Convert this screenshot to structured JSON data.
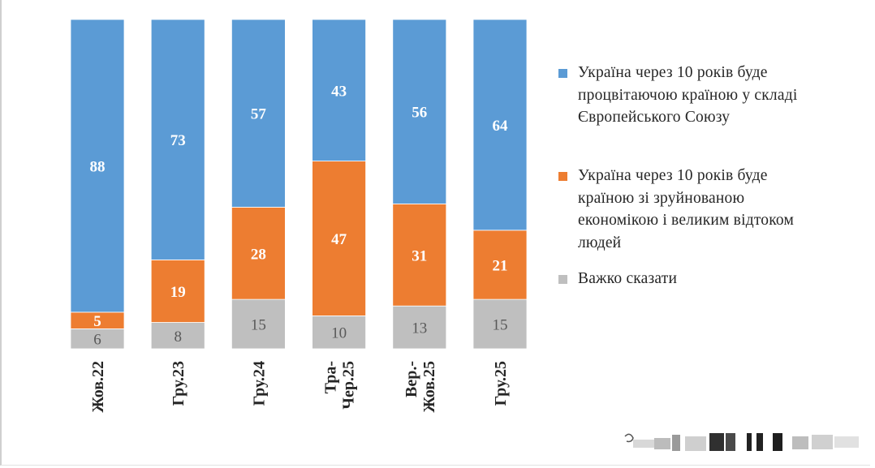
{
  "chart_data": {
    "type": "bar",
    "stacked": true,
    "normalized_percent": true,
    "categories": [
      "Жов.22",
      "Гру.23",
      "Гру.24",
      "Тра-Чер.25",
      "Вер.-Жов.25",
      "Гру.25"
    ],
    "category_lines": [
      [
        "Жов.22"
      ],
      [
        "Гру.23"
      ],
      [
        "Гру.24"
      ],
      [
        "Тра-",
        "Чер.25"
      ],
      [
        "Вер.-",
        "Жов.25"
      ],
      [
        "Гру.25"
      ]
    ],
    "series": [
      {
        "name": "Важко сказати",
        "color": "#bfbfbf",
        "label_color": "#595959",
        "values": [
          6,
          8,
          15,
          10,
          13,
          15
        ]
      },
      {
        "name": "Україна через 10 років буде країною зі зруйнованою економікою і великим відтоком людей",
        "color": "#ed7d31",
        "label_color": "#ffffff",
        "values": [
          5,
          19,
          28,
          47,
          31,
          21
        ]
      },
      {
        "name": "Україна через 10 років буде процвітаючою країною у складі Європейського Союзу",
        "color": "#5b9bd5",
        "label_color": "#ffffff",
        "values": [
          88,
          73,
          57,
          43,
          56,
          64
        ]
      }
    ],
    "ylim": [
      0,
      100
    ],
    "legend_position": "right",
    "grid": false,
    "title": "",
    "xlabel": "",
    "ylabel": ""
  },
  "legend": {
    "items": [
      {
        "label_lines": [
          "Україна через 10 років буде",
          "процвітаючою країною у складі",
          "Європейського Союзу"
        ],
        "color": "#5b9bd5"
      },
      {
        "label_lines": [
          "Україна через 10 років буде",
          "країною зі зруйнованою",
          "економікою і великим відтоком",
          "людей"
        ],
        "color": "#ed7d31"
      },
      {
        "label_lines": [
          "Важко сказати"
        ],
        "color": "#bfbfbf"
      }
    ]
  }
}
